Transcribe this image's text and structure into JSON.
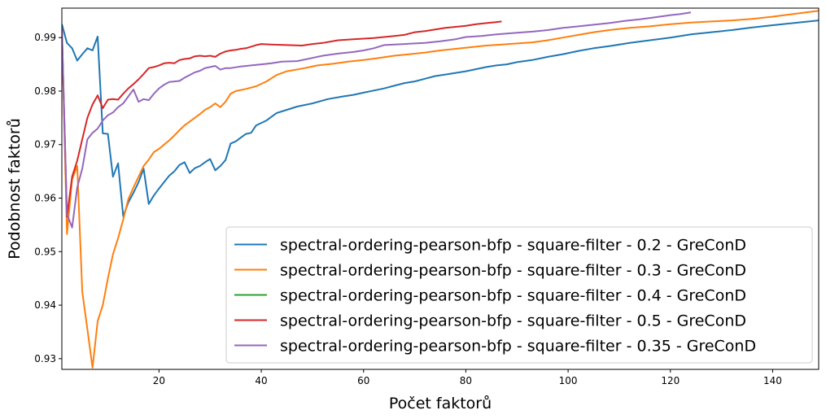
{
  "chart_data": {
    "type": "line",
    "xlabel": "Počet faktorů",
    "ylabel": "Podobnost faktorů",
    "xlim": [
      1,
      149
    ],
    "ylim": [
      0.928,
      0.9955
    ],
    "xticks": [
      20,
      40,
      60,
      80,
      100,
      120,
      140
    ],
    "yticks": [
      0.93,
      0.94,
      0.95,
      0.96,
      0.97,
      0.98,
      0.99
    ],
    "ytick_labels": [
      "0.93",
      "0.94",
      "0.95",
      "0.96",
      "0.97",
      "0.98",
      "0.99"
    ],
    "legend_position": "lower-right",
    "grid": false,
    "series": [
      {
        "name": "spectral-ordering-pearson-bfp - square-filter - 0.2 - GreConD",
        "color": "#1f77b4",
        "points": [
          [
            1,
            0.9925
          ],
          [
            2,
            0.989
          ],
          [
            3,
            0.988
          ],
          [
            4,
            0.9857
          ],
          [
            5,
            0.9869
          ],
          [
            6,
            0.988
          ],
          [
            7,
            0.9876
          ],
          [
            8,
            0.9902
          ],
          [
            9,
            0.9721
          ],
          [
            10,
            0.972
          ],
          [
            11,
            0.964
          ],
          [
            12,
            0.9665
          ],
          [
            13,
            0.9566
          ],
          [
            14,
            0.9592
          ],
          [
            15,
            0.961
          ],
          [
            16,
            0.963
          ],
          [
            17,
            0.9655
          ],
          [
            18,
            0.9589
          ],
          [
            19,
            0.9605
          ],
          [
            20,
            0.9618
          ],
          [
            21,
            0.963
          ],
          [
            22,
            0.9642
          ],
          [
            23,
            0.965
          ],
          [
            24,
            0.9662
          ],
          [
            25,
            0.9667
          ],
          [
            26,
            0.9647
          ],
          [
            27,
            0.9656
          ],
          [
            28,
            0.966
          ],
          [
            29,
            0.9667
          ],
          [
            30,
            0.9673
          ],
          [
            31,
            0.9652
          ],
          [
            32,
            0.966
          ],
          [
            33,
            0.9671
          ],
          [
            34,
            0.9702
          ],
          [
            35,
            0.9706
          ],
          [
            37,
            0.972
          ],
          [
            38,
            0.9722
          ],
          [
            39,
            0.9736
          ],
          [
            41,
            0.9745
          ],
          [
            43,
            0.9759
          ],
          [
            45,
            0.9765
          ],
          [
            47,
            0.9771
          ],
          [
            50,
            0.9777
          ],
          [
            53,
            0.9785
          ],
          [
            56,
            0.979
          ],
          [
            58,
            0.9793
          ],
          [
            60,
            0.9797
          ],
          [
            62,
            0.9801
          ],
          [
            64,
            0.9805
          ],
          [
            66,
            0.981
          ],
          [
            68,
            0.9815
          ],
          [
            70,
            0.9818
          ],
          [
            72,
            0.9823
          ],
          [
            74,
            0.9828
          ],
          [
            76,
            0.9831
          ],
          [
            78,
            0.9834
          ],
          [
            80,
            0.9837
          ],
          [
            82,
            0.9841
          ],
          [
            84,
            0.9845
          ],
          [
            86,
            0.9848
          ],
          [
            88,
            0.985
          ],
          [
            90,
            0.9854
          ],
          [
            93,
            0.9858
          ],
          [
            96,
            0.9864
          ],
          [
            99,
            0.9869
          ],
          [
            102,
            0.9875
          ],
          [
            105,
            0.988
          ],
          [
            108,
            0.9884
          ],
          [
            112,
            0.989
          ],
          [
            116,
            0.9895
          ],
          [
            120,
            0.99
          ],
          [
            124,
            0.9906
          ],
          [
            128,
            0.991
          ],
          [
            132,
            0.9914
          ],
          [
            136,
            0.9919
          ],
          [
            140,
            0.9923
          ],
          [
            144,
            0.9927
          ],
          [
            149,
            0.9932
          ]
        ]
      },
      {
        "name": "spectral-ordering-pearson-bfp - square-filter - 0.3 - GreConD",
        "color": "#ff7f0e",
        "points": [
          [
            1,
            0.9918
          ],
          [
            2,
            0.9533
          ],
          [
            3,
            0.9635
          ],
          [
            4,
            0.966
          ],
          [
            5,
            0.9425
          ],
          [
            6,
            0.9355
          ],
          [
            7,
            0.9283
          ],
          [
            8,
            0.937
          ],
          [
            9,
            0.94
          ],
          [
            10,
            0.945
          ],
          [
            11,
            0.9495
          ],
          [
            12,
            0.9525
          ],
          [
            13,
            0.956
          ],
          [
            14,
            0.9598
          ],
          [
            15,
            0.962
          ],
          [
            16,
            0.964
          ],
          [
            17,
            0.966
          ],
          [
            18,
            0.9672
          ],
          [
            19,
            0.9686
          ],
          [
            20,
            0.9692
          ],
          [
            21,
            0.97
          ],
          [
            22,
            0.9708
          ],
          [
            23,
            0.9717
          ],
          [
            24,
            0.9727
          ],
          [
            25,
            0.9736
          ],
          [
            26,
            0.9743
          ],
          [
            27,
            0.975
          ],
          [
            28,
            0.9757
          ],
          [
            29,
            0.9765
          ],
          [
            30,
            0.977
          ],
          [
            31,
            0.9777
          ],
          [
            32,
            0.977
          ],
          [
            33,
            0.978
          ],
          [
            34,
            0.9795
          ],
          [
            35,
            0.98
          ],
          [
            37,
            0.9804
          ],
          [
            39,
            0.9809
          ],
          [
            41,
            0.9818
          ],
          [
            43,
            0.983
          ],
          [
            45,
            0.9837
          ],
          [
            48,
            0.9842
          ],
          [
            51,
            0.9848
          ],
          [
            54,
            0.9851
          ],
          [
            57,
            0.9855
          ],
          [
            60,
            0.9858
          ],
          [
            63,
            0.9862
          ],
          [
            66,
            0.9866
          ],
          [
            69,
            0.9869
          ],
          [
            72,
            0.9872
          ],
          [
            75,
            0.9876
          ],
          [
            78,
            0.9879
          ],
          [
            81,
            0.9882
          ],
          [
            84,
            0.9885
          ],
          [
            87,
            0.9887
          ],
          [
            90,
            0.9889
          ],
          [
            93,
            0.9891
          ],
          [
            96,
            0.9895
          ],
          [
            99,
            0.99
          ],
          [
            102,
            0.9905
          ],
          [
            105,
            0.991
          ],
          [
            108,
            0.9914
          ],
          [
            112,
            0.9918
          ],
          [
            116,
            0.9921
          ],
          [
            120,
            0.9925
          ],
          [
            124,
            0.9928
          ],
          [
            128,
            0.993
          ],
          [
            132,
            0.9932
          ],
          [
            136,
            0.9935
          ],
          [
            140,
            0.9939
          ],
          [
            144,
            0.9944
          ],
          [
            149,
            0.995
          ]
        ]
      },
      {
        "name": "spectral-ordering-pearson-bfp - square-filter - 0.4 - GreConD",
        "color": "#2ca02c",
        "points": []
      },
      {
        "name": "spectral-ordering-pearson-bfp - square-filter - 0.5 - GreConD",
        "color": "#d62728",
        "points": [
          [
            1,
            0.9918
          ],
          [
            2,
            0.9565
          ],
          [
            3,
            0.964
          ],
          [
            4,
            0.967
          ],
          [
            5,
            0.971
          ],
          [
            6,
            0.975
          ],
          [
            7,
            0.9775
          ],
          [
            8,
            0.9792
          ],
          [
            9,
            0.9768
          ],
          [
            10,
            0.9784
          ],
          [
            11,
            0.9785
          ],
          [
            12,
            0.9784
          ],
          [
            13,
            0.9795
          ],
          [
            14,
            0.9805
          ],
          [
            15,
            0.9813
          ],
          [
            16,
            0.9822
          ],
          [
            17,
            0.9832
          ],
          [
            18,
            0.9843
          ],
          [
            19,
            0.9845
          ],
          [
            20,
            0.9848
          ],
          [
            21,
            0.9852
          ],
          [
            22,
            0.9853
          ],
          [
            23,
            0.9852
          ],
          [
            24,
            0.9858
          ],
          [
            25,
            0.986
          ],
          [
            26,
            0.9861
          ],
          [
            27,
            0.9865
          ],
          [
            28,
            0.9866
          ],
          [
            29,
            0.9865
          ],
          [
            30,
            0.9866
          ],
          [
            31,
            0.9864
          ],
          [
            32,
            0.987
          ],
          [
            33,
            0.9874
          ],
          [
            34,
            0.9876
          ],
          [
            35,
            0.9877
          ],
          [
            36,
            0.9879
          ],
          [
            37,
            0.988
          ],
          [
            38,
            0.9883
          ],
          [
            39,
            0.9886
          ],
          [
            40,
            0.9888
          ],
          [
            42,
            0.9887
          ],
          [
            45,
            0.9886
          ],
          [
            48,
            0.9885
          ],
          [
            50,
            0.9888
          ],
          [
            52,
            0.989
          ],
          [
            55,
            0.9895
          ],
          [
            58,
            0.9897
          ],
          [
            60,
            0.9898
          ],
          [
            62,
            0.9899
          ],
          [
            64,
            0.9901
          ],
          [
            66,
            0.9903
          ],
          [
            68,
            0.9905
          ],
          [
            70,
            0.991
          ],
          [
            72,
            0.9912
          ],
          [
            74,
            0.9915
          ],
          [
            76,
            0.9918
          ],
          [
            78,
            0.992
          ],
          [
            80,
            0.9922
          ],
          [
            82,
            0.9925
          ],
          [
            84,
            0.9927
          ],
          [
            86,
            0.9929
          ],
          [
            87,
            0.993
          ]
        ]
      },
      {
        "name": "spectral-ordering-pearson-bfp - square-filter - 0.35 - GreConD",
        "color": "#9467bd",
        "points": [
          [
            1,
            0.9918
          ],
          [
            2,
            0.957
          ],
          [
            3,
            0.9545
          ],
          [
            4,
            0.962
          ],
          [
            5,
            0.9655
          ],
          [
            6,
            0.971
          ],
          [
            7,
            0.9722
          ],
          [
            8,
            0.973
          ],
          [
            9,
            0.9745
          ],
          [
            10,
            0.9755
          ],
          [
            11,
            0.976
          ],
          [
            12,
            0.977
          ],
          [
            13,
            0.9777
          ],
          [
            14,
            0.979
          ],
          [
            15,
            0.9803
          ],
          [
            16,
            0.978
          ],
          [
            17,
            0.9785
          ],
          [
            18,
            0.9783
          ],
          [
            19,
            0.9795
          ],
          [
            20,
            0.9805
          ],
          [
            21,
            0.9812
          ],
          [
            22,
            0.9817
          ],
          [
            23,
            0.9818
          ],
          [
            24,
            0.9819
          ],
          [
            25,
            0.9825
          ],
          [
            26,
            0.983
          ],
          [
            27,
            0.9835
          ],
          [
            28,
            0.9838
          ],
          [
            29,
            0.9843
          ],
          [
            30,
            0.9845
          ],
          [
            31,
            0.9847
          ],
          [
            32,
            0.984
          ],
          [
            33,
            0.9843
          ],
          [
            34,
            0.9843
          ],
          [
            36,
            0.9846
          ],
          [
            38,
            0.9848
          ],
          [
            40,
            0.985
          ],
          [
            42,
            0.9852
          ],
          [
            44,
            0.9855
          ],
          [
            47,
            0.9856
          ],
          [
            50,
            0.9862
          ],
          [
            52,
            0.9866
          ],
          [
            55,
            0.987
          ],
          [
            58,
            0.9873
          ],
          [
            60,
            0.9876
          ],
          [
            62,
            0.988
          ],
          [
            64,
            0.9886
          ],
          [
            66,
            0.9887
          ],
          [
            68,
            0.9888
          ],
          [
            70,
            0.9889
          ],
          [
            72,
            0.989
          ],
          [
            75,
            0.9893
          ],
          [
            78,
            0.9897
          ],
          [
            80,
            0.9901
          ],
          [
            83,
            0.9903
          ],
          [
            86,
            0.9906
          ],
          [
            90,
            0.9909
          ],
          [
            93,
            0.9911
          ],
          [
            96,
            0.9914
          ],
          [
            99,
            0.9918
          ],
          [
            102,
            0.9921
          ],
          [
            105,
            0.9924
          ],
          [
            108,
            0.9927
          ],
          [
            111,
            0.9931
          ],
          [
            114,
            0.9934
          ],
          [
            117,
            0.9938
          ],
          [
            120,
            0.9942
          ],
          [
            122,
            0.9944
          ],
          [
            124,
            0.9947
          ]
        ]
      }
    ]
  }
}
